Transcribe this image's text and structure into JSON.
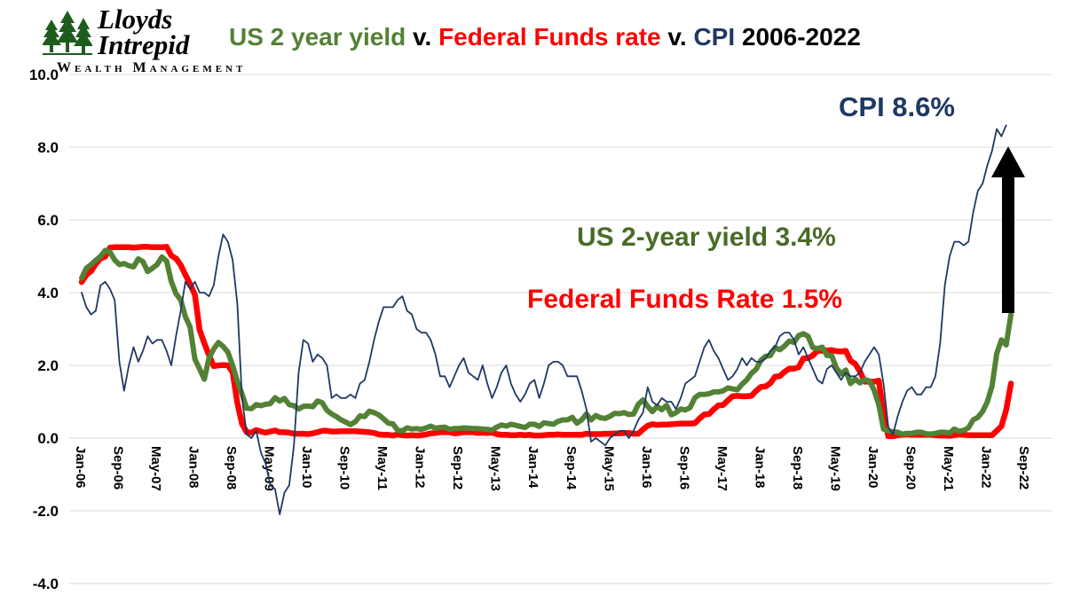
{
  "logo": {
    "name_line1": "Lloyds",
    "name_line2": "Intrepid",
    "subtitle": "Wealth Management"
  },
  "title": {
    "part1": "US 2 year yield",
    "sep1": " v. ",
    "part2": "Federal Funds rate",
    "sep2": " v. ",
    "part3": "CPI",
    "part4": " 2006-2022"
  },
  "annotations": {
    "cpi": "CPI 8.6%",
    "yield": "US 2-year yield 3.4%",
    "ffr": "Federal Funds Rate 1.5%"
  },
  "colors": {
    "yield": "#538135",
    "ffr": "#ff0000",
    "cpi": "#1f3864",
    "grid": "#d9d9d9",
    "arrow": "#000000"
  },
  "chart_data": {
    "type": "line",
    "title": "US 2 year yield v. Federal Funds rate v. CPI 2006-2022",
    "xlabel": "",
    "ylabel": "",
    "ylim": [
      -4,
      10
    ],
    "x_months_total": 200,
    "y_ticks": [
      10,
      8,
      6,
      4,
      2,
      0,
      -2,
      -4
    ],
    "y_tick_labels": [
      "10.0",
      "8.0",
      "6.0",
      "4.0",
      "2.0",
      "0.0",
      "-2.0",
      "-4.0"
    ],
    "x_tick_labels": [
      "Jan-06",
      "Sep-06",
      "May-07",
      "Jan-08",
      "Sep-08",
      "May-09",
      "Jan-10",
      "Sep-10",
      "May-11",
      "Jan-12",
      "Sep-12",
      "May-13",
      "Jan-14",
      "Sep-14",
      "May-15",
      "Jan-16",
      "Sep-16",
      "May-17",
      "Jan-18",
      "Sep-18",
      "May-19",
      "Jan-20",
      "Sep-20",
      "May-21",
      "Jan-22",
      "Sep-22"
    ],
    "x_tick_month_indexes": [
      0,
      8,
      16,
      24,
      32,
      40,
      48,
      56,
      64,
      72,
      80,
      88,
      96,
      104,
      112,
      120,
      128,
      136,
      144,
      152,
      160,
      168,
      176,
      184,
      192,
      200
    ],
    "series": [
      {
        "name": "Federal Funds Rate",
        "color_key": "ffr",
        "stroke_width": 6.5,
        "last_value": 1.5,
        "values": [
          4.29,
          4.49,
          4.59,
          4.79,
          4.94,
          4.99,
          5.24,
          5.25,
          5.25,
          5.25,
          5.25,
          5.24,
          5.25,
          5.26,
          5.26,
          5.25,
          5.25,
          5.25,
          5.26,
          5.02,
          4.94,
          4.76,
          4.49,
          4.24,
          3.94,
          2.98,
          2.61,
          2.28,
          1.98,
          2.0,
          2.01,
          2.0,
          1.81,
          0.97,
          0.39,
          0.16,
          0.15,
          0.22,
          0.18,
          0.15,
          0.18,
          0.21,
          0.16,
          0.16,
          0.15,
          0.12,
          0.12,
          0.12,
          0.11,
          0.13,
          0.16,
          0.2,
          0.2,
          0.18,
          0.18,
          0.19,
          0.19,
          0.19,
          0.19,
          0.18,
          0.17,
          0.16,
          0.14,
          0.1,
          0.09,
          0.09,
          0.07,
          0.1,
          0.08,
          0.07,
          0.08,
          0.07,
          0.08,
          0.1,
          0.13,
          0.14,
          0.16,
          0.16,
          0.16,
          0.13,
          0.14,
          0.16,
          0.16,
          0.16,
          0.14,
          0.15,
          0.14,
          0.15,
          0.11,
          0.09,
          0.09,
          0.08,
          0.08,
          0.09,
          0.08,
          0.09,
          0.07,
          0.07,
          0.08,
          0.09,
          0.09,
          0.1,
          0.09,
          0.09,
          0.09,
          0.09,
          0.09,
          0.12,
          0.11,
          0.11,
          0.11,
          0.12,
          0.12,
          0.13,
          0.13,
          0.14,
          0.14,
          0.12,
          0.12,
          0.24,
          0.34,
          0.38,
          0.36,
          0.37,
          0.37,
          0.38,
          0.39,
          0.4,
          0.4,
          0.4,
          0.41,
          0.54,
          0.65,
          0.66,
          0.79,
          0.9,
          0.91,
          1.04,
          1.15,
          1.16,
          1.15,
          1.15,
          1.16,
          1.3,
          1.41,
          1.42,
          1.51,
          1.69,
          1.7,
          1.82,
          1.91,
          1.91,
          1.95,
          2.19,
          2.2,
          2.27,
          2.4,
          2.4,
          2.41,
          2.42,
          2.39,
          2.38,
          2.4,
          2.13,
          2.04,
          1.83,
          1.55,
          1.55,
          1.55,
          1.58,
          0.65,
          0.05,
          0.05,
          0.08,
          0.09,
          0.1,
          0.09,
          0.09,
          0.09,
          0.09,
          0.09,
          0.08,
          0.07,
          0.07,
          0.06,
          0.08,
          0.1,
          0.09,
          0.08,
          0.08,
          0.08,
          0.08,
          0.08,
          0.08,
          0.2,
          0.33,
          0.77,
          1.5
        ]
      },
      {
        "name": "US 2-year yield",
        "color_key": "yield",
        "stroke_width": 6,
        "last_value": 3.4,
        "values": [
          4.4,
          4.67,
          4.77,
          4.89,
          5.0,
          5.16,
          5.12,
          4.9,
          4.77,
          4.8,
          4.74,
          4.71,
          4.93,
          4.85,
          4.58,
          4.67,
          4.77,
          4.98,
          4.87,
          4.31,
          3.97,
          3.8,
          3.34,
          3.05,
          2.17,
          1.9,
          1.62,
          2.2,
          2.45,
          2.63,
          2.52,
          2.36,
          2.0,
          1.56,
          1.21,
          0.82,
          0.81,
          0.92,
          0.89,
          0.93,
          0.95,
          1.11,
          1.02,
          1.09,
          0.92,
          0.89,
          0.8,
          0.87,
          0.88,
          0.86,
          1.02,
          0.97,
          0.76,
          0.66,
          0.59,
          0.5,
          0.44,
          0.37,
          0.45,
          0.61,
          0.59,
          0.74,
          0.7,
          0.64,
          0.53,
          0.41,
          0.39,
          0.21,
          0.2,
          0.28,
          0.25,
          0.26,
          0.24,
          0.28,
          0.33,
          0.27,
          0.29,
          0.3,
          0.24,
          0.26,
          0.26,
          0.28,
          0.27,
          0.26,
          0.26,
          0.25,
          0.24,
          0.22,
          0.3,
          0.36,
          0.33,
          0.38,
          0.35,
          0.32,
          0.29,
          0.38,
          0.38,
          0.32,
          0.42,
          0.4,
          0.38,
          0.46,
          0.5,
          0.5,
          0.57,
          0.41,
          0.5,
          0.66,
          0.5,
          0.62,
          0.56,
          0.54,
          0.6,
          0.68,
          0.67,
          0.7,
          0.65,
          0.66,
          0.93,
          1.05,
          0.87,
          0.73,
          0.87,
          0.78,
          0.9,
          0.64,
          0.7,
          0.8,
          0.77,
          0.84,
          1.11,
          1.2,
          1.2,
          1.22,
          1.27,
          1.27,
          1.3,
          1.38,
          1.35,
          1.33,
          1.48,
          1.6,
          1.78,
          1.89,
          2.14,
          2.25,
          2.27,
          2.49,
          2.43,
          2.53,
          2.67,
          2.63,
          2.82,
          2.87,
          2.8,
          2.49,
          2.46,
          2.5,
          2.27,
          2.27,
          1.93,
          1.76,
          1.87,
          1.5,
          1.62,
          1.52,
          1.61,
          1.57,
          1.32,
          0.92,
          0.25,
          0.2,
          0.17,
          0.16,
          0.11,
          0.13,
          0.13,
          0.16,
          0.16,
          0.12,
          0.11,
          0.13,
          0.16,
          0.16,
          0.14,
          0.25,
          0.19,
          0.21,
          0.28,
          0.5,
          0.57,
          0.73,
          1.0,
          1.43,
          2.33,
          2.7,
          2.56,
          3.4
        ]
      },
      {
        "name": "CPI",
        "color_key": "cpi",
        "stroke_width": 1.8,
        "last_value": 8.6,
        "values": [
          4.0,
          3.6,
          3.4,
          3.5,
          4.2,
          4.3,
          4.1,
          3.8,
          2.1,
          1.3,
          2.0,
          2.5,
          2.1,
          2.4,
          2.8,
          2.6,
          2.7,
          2.7,
          2.4,
          2.0,
          2.8,
          3.5,
          4.3,
          4.1,
          4.3,
          4.0,
          4.0,
          3.9,
          4.2,
          5.0,
          5.6,
          5.4,
          4.9,
          3.7,
          1.1,
          0.1,
          0.0,
          0.2,
          -0.4,
          -0.7,
          -1.3,
          -1.4,
          -2.1,
          -1.5,
          -1.3,
          -0.2,
          1.8,
          2.7,
          2.6,
          2.1,
          2.3,
          2.2,
          2.0,
          1.1,
          1.2,
          1.1,
          1.1,
          1.2,
          1.1,
          1.5,
          1.6,
          2.1,
          2.7,
          3.2,
          3.6,
          3.6,
          3.6,
          3.8,
          3.9,
          3.5,
          3.4,
          3.0,
          2.9,
          2.9,
          2.7,
          2.3,
          1.7,
          1.7,
          1.4,
          1.7,
          2.0,
          2.2,
          1.8,
          1.7,
          1.6,
          2.0,
          1.5,
          1.1,
          1.4,
          1.8,
          2.0,
          1.5,
          1.2,
          1.0,
          1.2,
          1.5,
          1.6,
          1.1,
          1.5,
          2.0,
          2.1,
          2.1,
          2.0,
          1.7,
          1.7,
          1.7,
          1.3,
          0.8,
          -0.1,
          0.0,
          -0.1,
          -0.2,
          0.0,
          0.1,
          0.2,
          0.2,
          0.0,
          0.2,
          0.5,
          0.7,
          1.4,
          1.0,
          0.9,
          1.1,
          1.0,
          1.0,
          0.8,
          1.1,
          1.5,
          1.6,
          1.7,
          2.1,
          2.5,
          2.7,
          2.4,
          2.2,
          1.9,
          1.6,
          1.7,
          1.9,
          2.2,
          2.0,
          2.2,
          2.1,
          2.1,
          2.2,
          2.4,
          2.5,
          2.8,
          2.9,
          2.9,
          2.7,
          2.3,
          2.5,
          2.2,
          1.9,
          1.6,
          1.5,
          1.9,
          2.0,
          1.8,
          1.6,
          1.8,
          1.7,
          1.7,
          1.8,
          2.1,
          2.3,
          2.5,
          2.3,
          1.5,
          0.3,
          0.1,
          0.6,
          1.0,
          1.3,
          1.4,
          1.2,
          1.2,
          1.4,
          1.4,
          1.7,
          2.6,
          4.2,
          5.0,
          5.4,
          5.4,
          5.3,
          5.4,
          6.2,
          6.8,
          7.0,
          7.5,
          7.9,
          8.5,
          8.3,
          8.6
        ]
      }
    ]
  }
}
